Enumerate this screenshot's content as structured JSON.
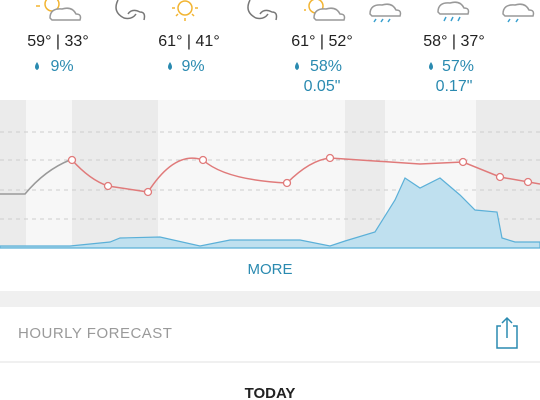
{
  "days": [
    {
      "temps": "59° | 33°",
      "precip": "9%"
    },
    {
      "temps": "61° | 41°",
      "precip": "9%"
    },
    {
      "temps": "61° | 52°",
      "precip": "58%",
      "amount": "0.05\""
    },
    {
      "temps": "58° | 37°",
      "precip": "57%",
      "amount": "0.17\""
    }
  ],
  "more_button": "MORE",
  "section": {
    "title": "HOURLY FORECAST"
  },
  "today": "TODAY"
}
